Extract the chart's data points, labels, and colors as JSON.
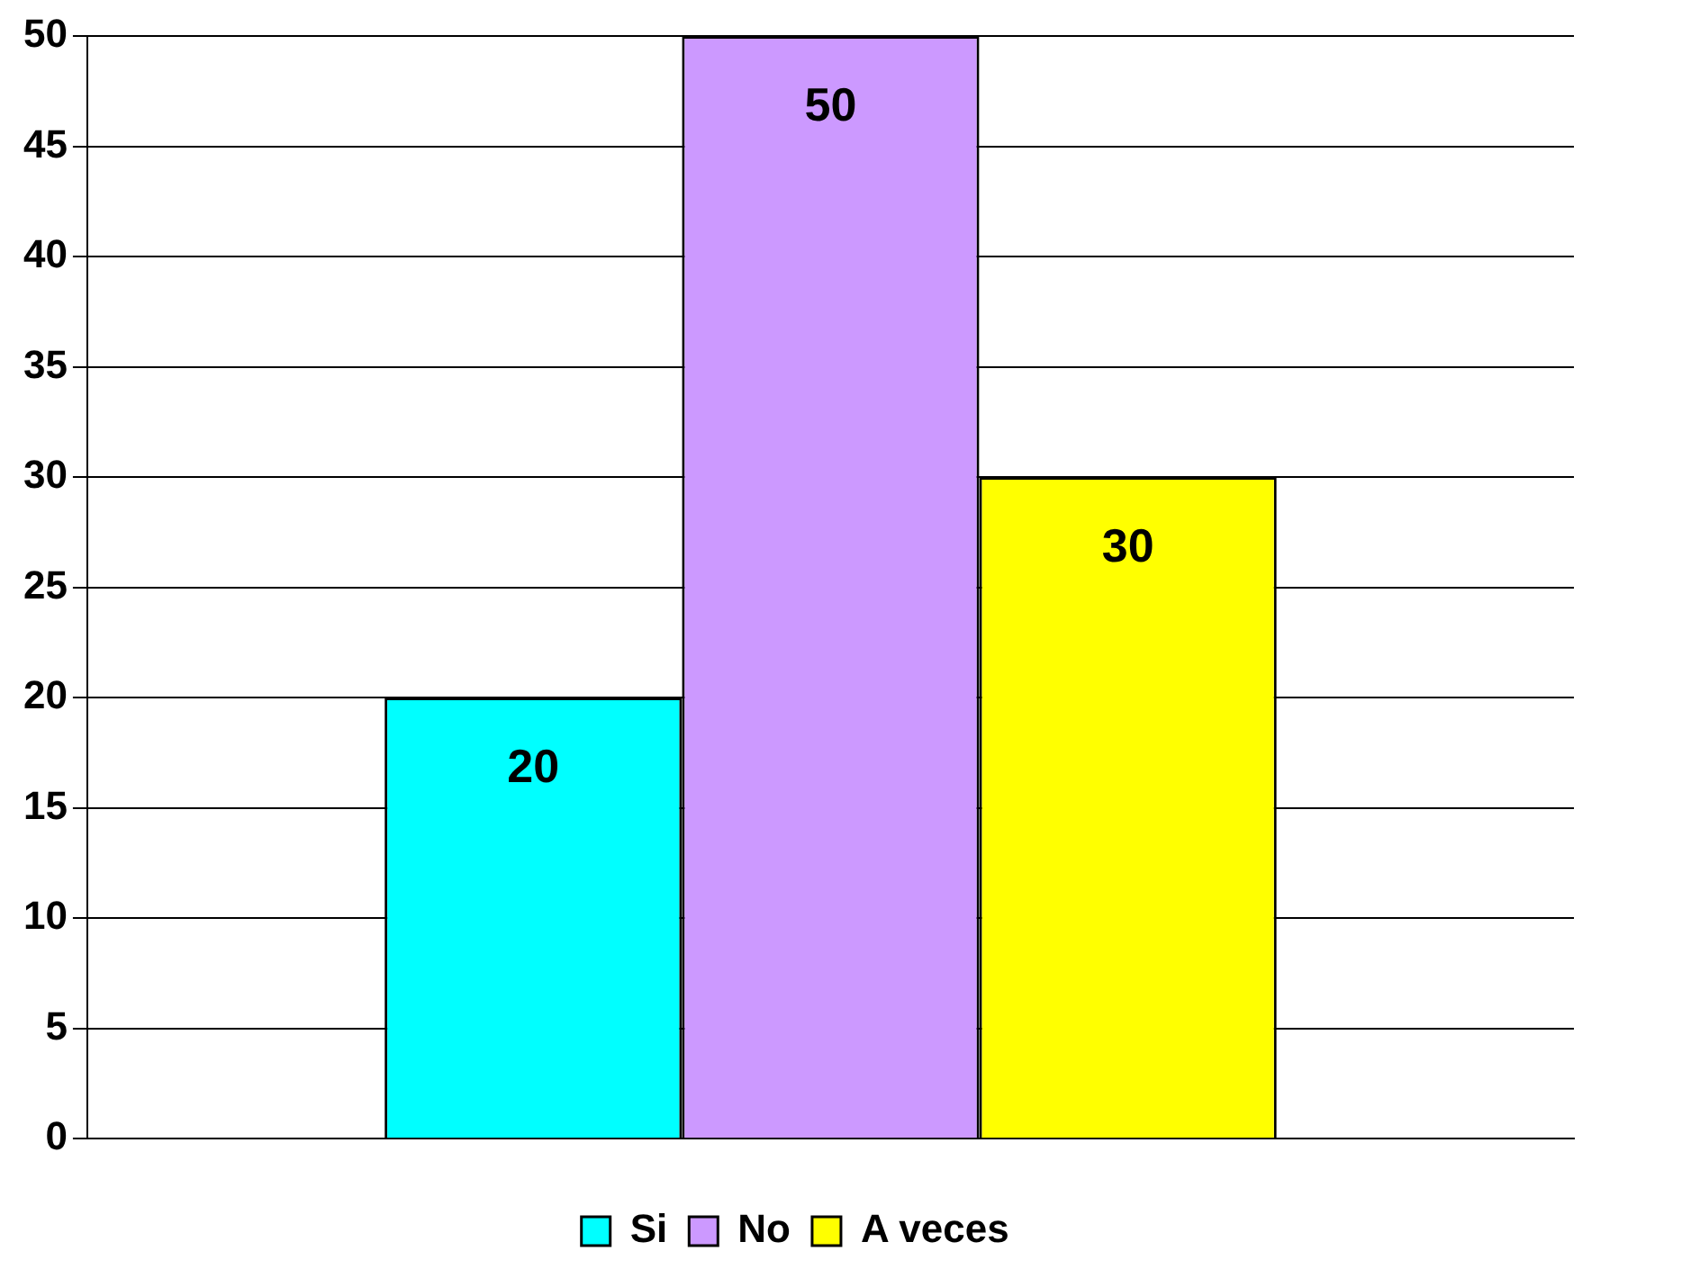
{
  "chart_data": {
    "type": "bar",
    "categories": [
      null
    ],
    "series": [
      {
        "name": "Si",
        "color": "#00ffff",
        "values": [
          20
        ]
      },
      {
        "name": "No",
        "color": "#cc99ff",
        "values": [
          50
        ]
      },
      {
        "name": "A veces",
        "color": "#ffff00",
        "values": [
          30
        ]
      }
    ],
    "ylim": [
      0,
      50
    ],
    "yticks": [
      0,
      5,
      10,
      15,
      20,
      25,
      30,
      35,
      40,
      45,
      50
    ],
    "grid": "y",
    "legend": "bottom",
    "data_labels": true
  }
}
